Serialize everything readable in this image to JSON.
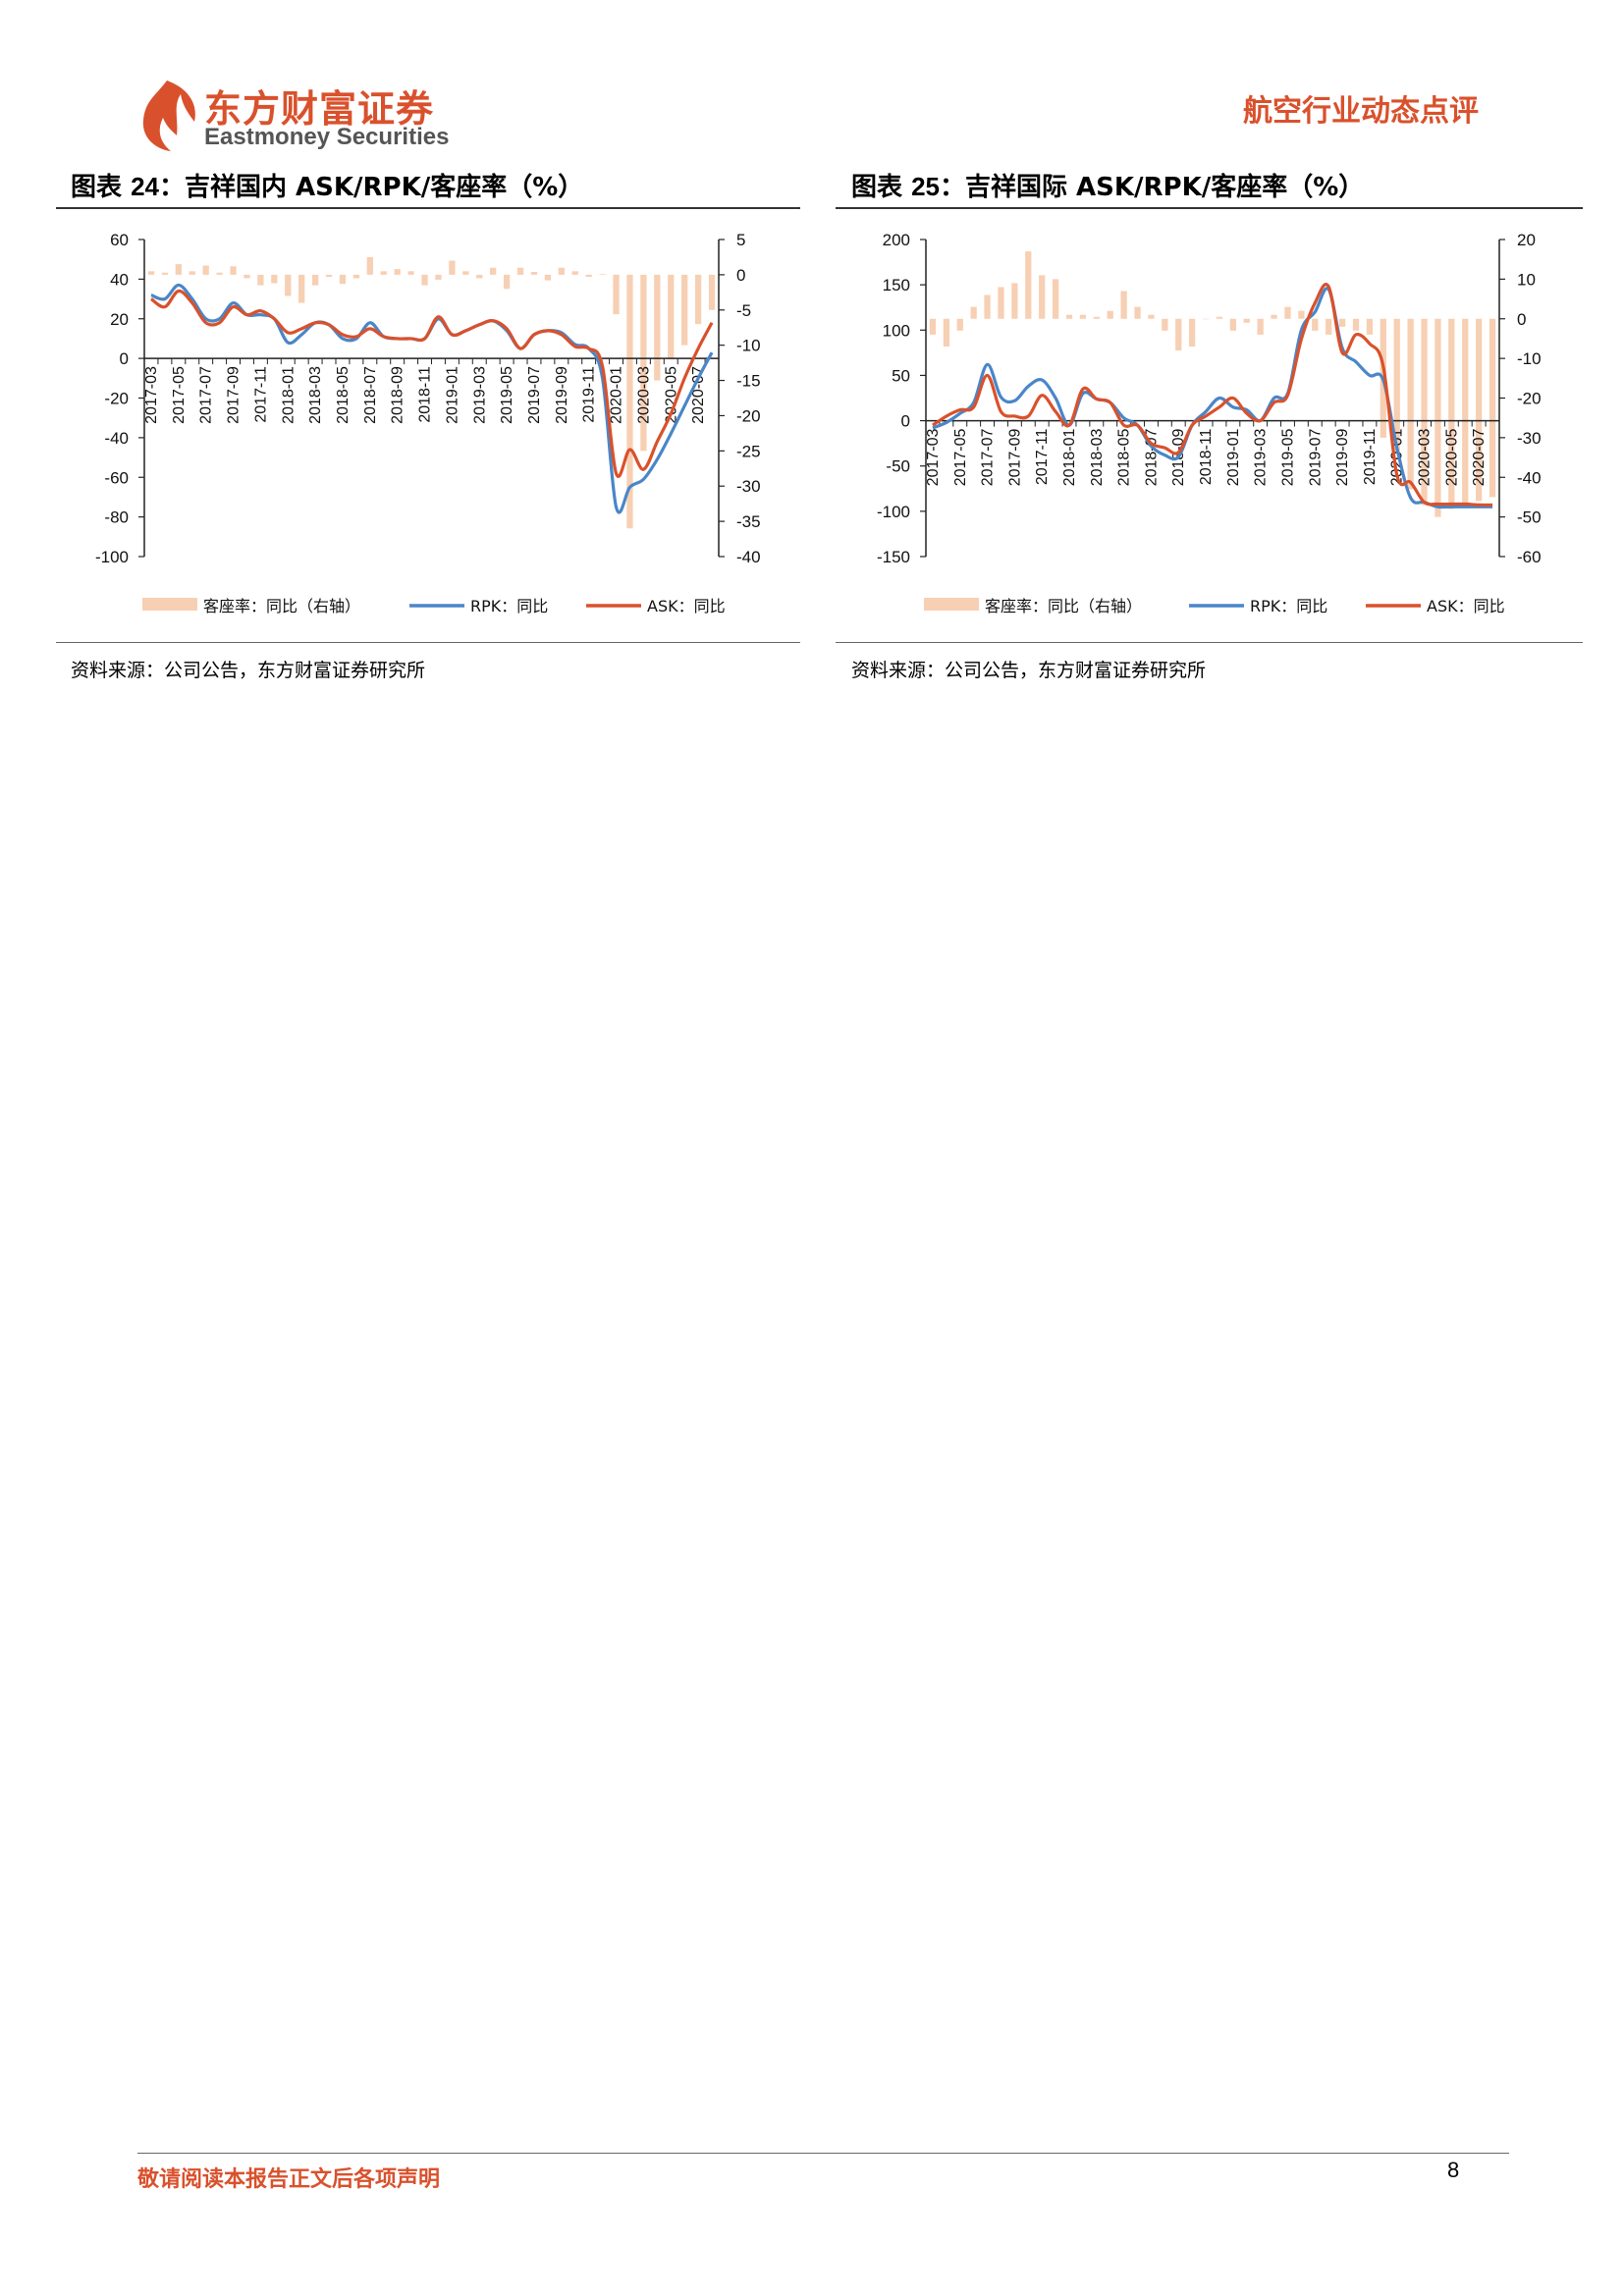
{
  "header": {
    "logo_cn": "东方财富证券",
    "logo_en": "Eastmoney Securities",
    "report_type": "航空行业动态点评"
  },
  "colors": {
    "brand": "#d9512c",
    "load_factor_bar": "#f7cfb3",
    "rpk_line": "#4a86c8",
    "ask_line": "#d9512c"
  },
  "chart_data": [
    {
      "type": "bar+line",
      "title_prefix": "图表 ",
      "title_num": "24",
      "title_text": "：吉祥国内 ASK/RPK/客座率（%）",
      "x": [
        "2017-03",
        "2017-04",
        "2017-05",
        "2017-06",
        "2017-07",
        "2017-08",
        "2017-09",
        "2017-10",
        "2017-11",
        "2017-12",
        "2018-01",
        "2018-02",
        "2018-03",
        "2018-04",
        "2018-05",
        "2018-06",
        "2018-07",
        "2018-08",
        "2018-09",
        "2018-10",
        "2018-11",
        "2018-12",
        "2019-01",
        "2019-02",
        "2019-03",
        "2019-04",
        "2019-05",
        "2019-06",
        "2019-07",
        "2019-08",
        "2019-09",
        "2019-10",
        "2019-11",
        "2019-12",
        "2020-01",
        "2020-02",
        "2020-03",
        "2020-04",
        "2020-05",
        "2020-06",
        "2020-07",
        "2020-08"
      ],
      "x_ticks": [
        "2017-03",
        "2017-05",
        "2017-07",
        "2017-09",
        "2017-11",
        "2018-01",
        "2018-03",
        "2018-05",
        "2018-07",
        "2018-09",
        "2018-11",
        "2019-01",
        "2019-03",
        "2019-05",
        "2019-07",
        "2019-09",
        "2019-11",
        "2020-01",
        "2020-03",
        "2020-05",
        "2020-07"
      ],
      "y_left": {
        "min": -100,
        "max": 60,
        "step": 20,
        "ticks": [
          "60",
          "40",
          "20",
          "0",
          "-20",
          "-40",
          "-60",
          "-80",
          "-100"
        ]
      },
      "y_right": {
        "min": -40,
        "max": 5,
        "step": 5,
        "ticks": [
          "5",
          "0",
          "-5",
          "-10",
          "-15",
          "-20",
          "-25",
          "-30",
          "-35",
          "-40"
        ]
      },
      "series": [
        {
          "name": "客座率：同比（右轴）",
          "kind": "bar",
          "axis": "right",
          "values": [
            0.5,
            0.3,
            1.5,
            0.5,
            1.3,
            0.3,
            1.2,
            -0.5,
            -1.5,
            -1.2,
            -3,
            -4,
            -1.5,
            -0.3,
            -1.3,
            -0.5,
            2.5,
            0.5,
            0.8,
            0.5,
            -1.5,
            -0.7,
            2,
            0.5,
            -0.5,
            1,
            -2,
            1,
            0.4,
            -0.8,
            1,
            0.5,
            -0.3,
            0.1,
            -5.6,
            -36,
            -25,
            -15,
            -12,
            -10,
            -7,
            -5
          ]
        },
        {
          "name": "RPK：同比",
          "kind": "line",
          "axis": "left",
          "values": [
            32,
            30,
            37,
            30,
            20,
            20,
            28,
            22,
            22,
            20,
            8,
            12,
            18,
            17,
            10,
            10,
            18,
            11,
            10,
            10,
            10,
            20,
            12,
            14,
            17,
            19,
            14,
            5,
            12,
            14,
            13,
            7,
            5,
            -10,
            -75,
            -65,
            -61,
            -51,
            -38,
            -24,
            -10,
            3
          ]
        },
        {
          "name": "ASK：同比",
          "kind": "line",
          "axis": "left",
          "values": [
            30,
            26,
            34,
            28,
            18,
            18,
            26,
            22,
            24,
            20,
            13,
            15,
            18,
            17,
            12,
            11,
            15,
            11,
            10,
            10,
            10,
            21,
            12,
            14,
            17,
            19,
            15,
            5,
            12,
            14,
            12,
            6,
            5,
            -4,
            -58,
            -46,
            -56,
            -42,
            -28,
            -10,
            5,
            18
          ]
        }
      ]
    },
    {
      "type": "bar+line",
      "title_prefix": "图表 ",
      "title_num": "25",
      "title_text": "：吉祥国际 ASK/RPK/客座率（%）",
      "x": [
        "2017-03",
        "2017-04",
        "2017-05",
        "2017-06",
        "2017-07",
        "2017-08",
        "2017-09",
        "2017-10",
        "2017-11",
        "2017-12",
        "2018-01",
        "2018-02",
        "2018-03",
        "2018-04",
        "2018-05",
        "2018-06",
        "2018-07",
        "2018-08",
        "2018-09",
        "2018-10",
        "2018-11",
        "2018-12",
        "2019-01",
        "2019-02",
        "2019-03",
        "2019-04",
        "2019-05",
        "2019-06",
        "2019-07",
        "2019-08",
        "2019-09",
        "2019-10",
        "2019-11",
        "2019-12",
        "2020-01",
        "2020-02",
        "2020-03",
        "2020-04",
        "2020-05",
        "2020-06",
        "2020-07",
        "2020-08"
      ],
      "x_ticks": [
        "2017-03",
        "2017-05",
        "2017-07",
        "2017-09",
        "2017-11",
        "2018-01",
        "2018-03",
        "2018-05",
        "2018-07",
        "2018-09",
        "2018-11",
        "2019-01",
        "2019-03",
        "2019-05",
        "2019-07",
        "2019-09",
        "2019-11",
        "2020-01",
        "2020-03",
        "2020-05",
        "2020-07"
      ],
      "y_left": {
        "min": -150,
        "max": 200,
        "step": 50,
        "ticks": [
          "200",
          "150",
          "100",
          "50",
          "0",
          "-50",
          "-100",
          "-150"
        ]
      },
      "y_right": {
        "min": -60,
        "max": 20,
        "step": 10,
        "ticks": [
          "20",
          "10",
          "0",
          "-10",
          "-20",
          "-30",
          "-40",
          "-50",
          "-60"
        ]
      },
      "series": [
        {
          "name": "客座率：同比（右轴）",
          "kind": "bar",
          "axis": "right",
          "values": [
            -4,
            -7,
            -3,
            3,
            6,
            8,
            9,
            17,
            11,
            10,
            1,
            1,
            0.5,
            2,
            7,
            3,
            1,
            -3,
            -8,
            -7,
            0,
            0.5,
            -3,
            -1,
            -4,
            1,
            3,
            2,
            -3,
            -4,
            -2,
            -3,
            -4,
            -30,
            -34,
            -43,
            -47,
            -50,
            -48,
            -47,
            -46,
            -45
          ]
        },
        {
          "name": "RPK：同比",
          "kind": "line",
          "axis": "left",
          "values": [
            -8,
            -2,
            8,
            20,
            62,
            26,
            22,
            38,
            45,
            25,
            -5,
            30,
            24,
            20,
            3,
            -5,
            -28,
            -38,
            -40,
            -5,
            10,
            25,
            15,
            12,
            0,
            25,
            30,
            100,
            120,
            145,
            80,
            65,
            50,
            45,
            -30,
            -85,
            -90,
            -95,
            -95,
            -95,
            -95,
            -95
          ]
        },
        {
          "name": "ASK：同比",
          "kind": "line",
          "axis": "left",
          "values": [
            -5,
            5,
            12,
            15,
            50,
            10,
            5,
            5,
            28,
            10,
            -5,
            35,
            24,
            20,
            -5,
            -5,
            -25,
            -30,
            -35,
            -5,
            5,
            15,
            25,
            8,
            0,
            20,
            28,
            90,
            130,
            148,
            75,
            95,
            85,
            60,
            -60,
            -68,
            -90,
            -92,
            -92,
            -92,
            -93,
            -93
          ]
        }
      ]
    }
  ],
  "source_text": "资料来源：公司公告，东方财富证券研究所",
  "footer": {
    "disclaimer": "敬请阅读本报告正文后各项声明",
    "page": "8"
  }
}
